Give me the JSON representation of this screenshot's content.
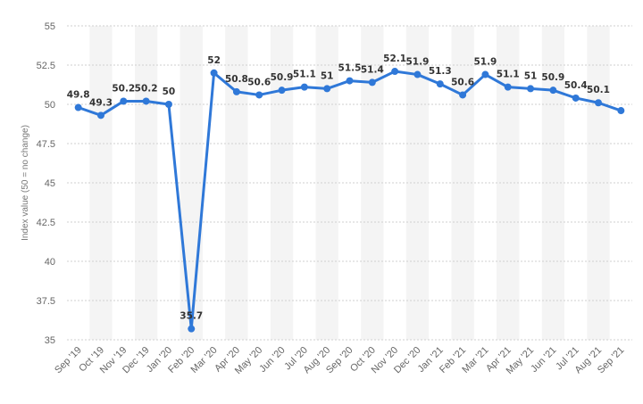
{
  "chart_data": {
    "type": "line",
    "title": "",
    "xlabel": "",
    "ylabel": "Index value (50 = no change)",
    "ylim": [
      35,
      55
    ],
    "yticks": [
      "35",
      "37.5",
      "40",
      "42.5",
      "45",
      "47.5",
      "50",
      "52.5",
      "55"
    ],
    "ytick_values": [
      35,
      37.5,
      40,
      42.5,
      45,
      47.5,
      50,
      52.5,
      55
    ],
    "grid": true,
    "legend": "none",
    "colors": {
      "line": "#2f78d8",
      "grid": "#cfcfcf",
      "band": "#f4f4f4"
    },
    "categories": [
      "Sep '19",
      "Oct '19",
      "Nov '19",
      "Dec '19",
      "Jan '20",
      "Feb '20",
      "Mar '20",
      "Apr '20",
      "May '20",
      "Jun '20",
      "Jul '20",
      "Aug '20",
      "Sep '20",
      "Oct '20",
      "Nov '20",
      "Dec '20",
      "Jan '21",
      "Feb '21",
      "Mar '21",
      "Apr '21",
      "May '21",
      "Jun '21",
      "Jul '21",
      "Aug '21",
      "Sep '21"
    ],
    "values": [
      49.8,
      49.3,
      50.2,
      50.2,
      50,
      35.7,
      52,
      50.8,
      50.6,
      50.9,
      51.1,
      51,
      51.5,
      51.4,
      52.1,
      51.9,
      51.3,
      50.6,
      51.9,
      51.1,
      51,
      50.9,
      50.4,
      50.1,
      49.6
    ],
    "data_labels": [
      "49.8",
      "49.3",
      "50.2",
      "50.2",
      "50",
      "35.7",
      "52",
      "50.8",
      "50.6",
      "50.9",
      "51.1",
      "51",
      "51.5",
      "51.4",
      "52.1",
      "51.9",
      "51.3",
      "50.6",
      "51.9",
      "51.1",
      "51",
      "50.9",
      "50.4",
      "50.1",
      ""
    ]
  }
}
